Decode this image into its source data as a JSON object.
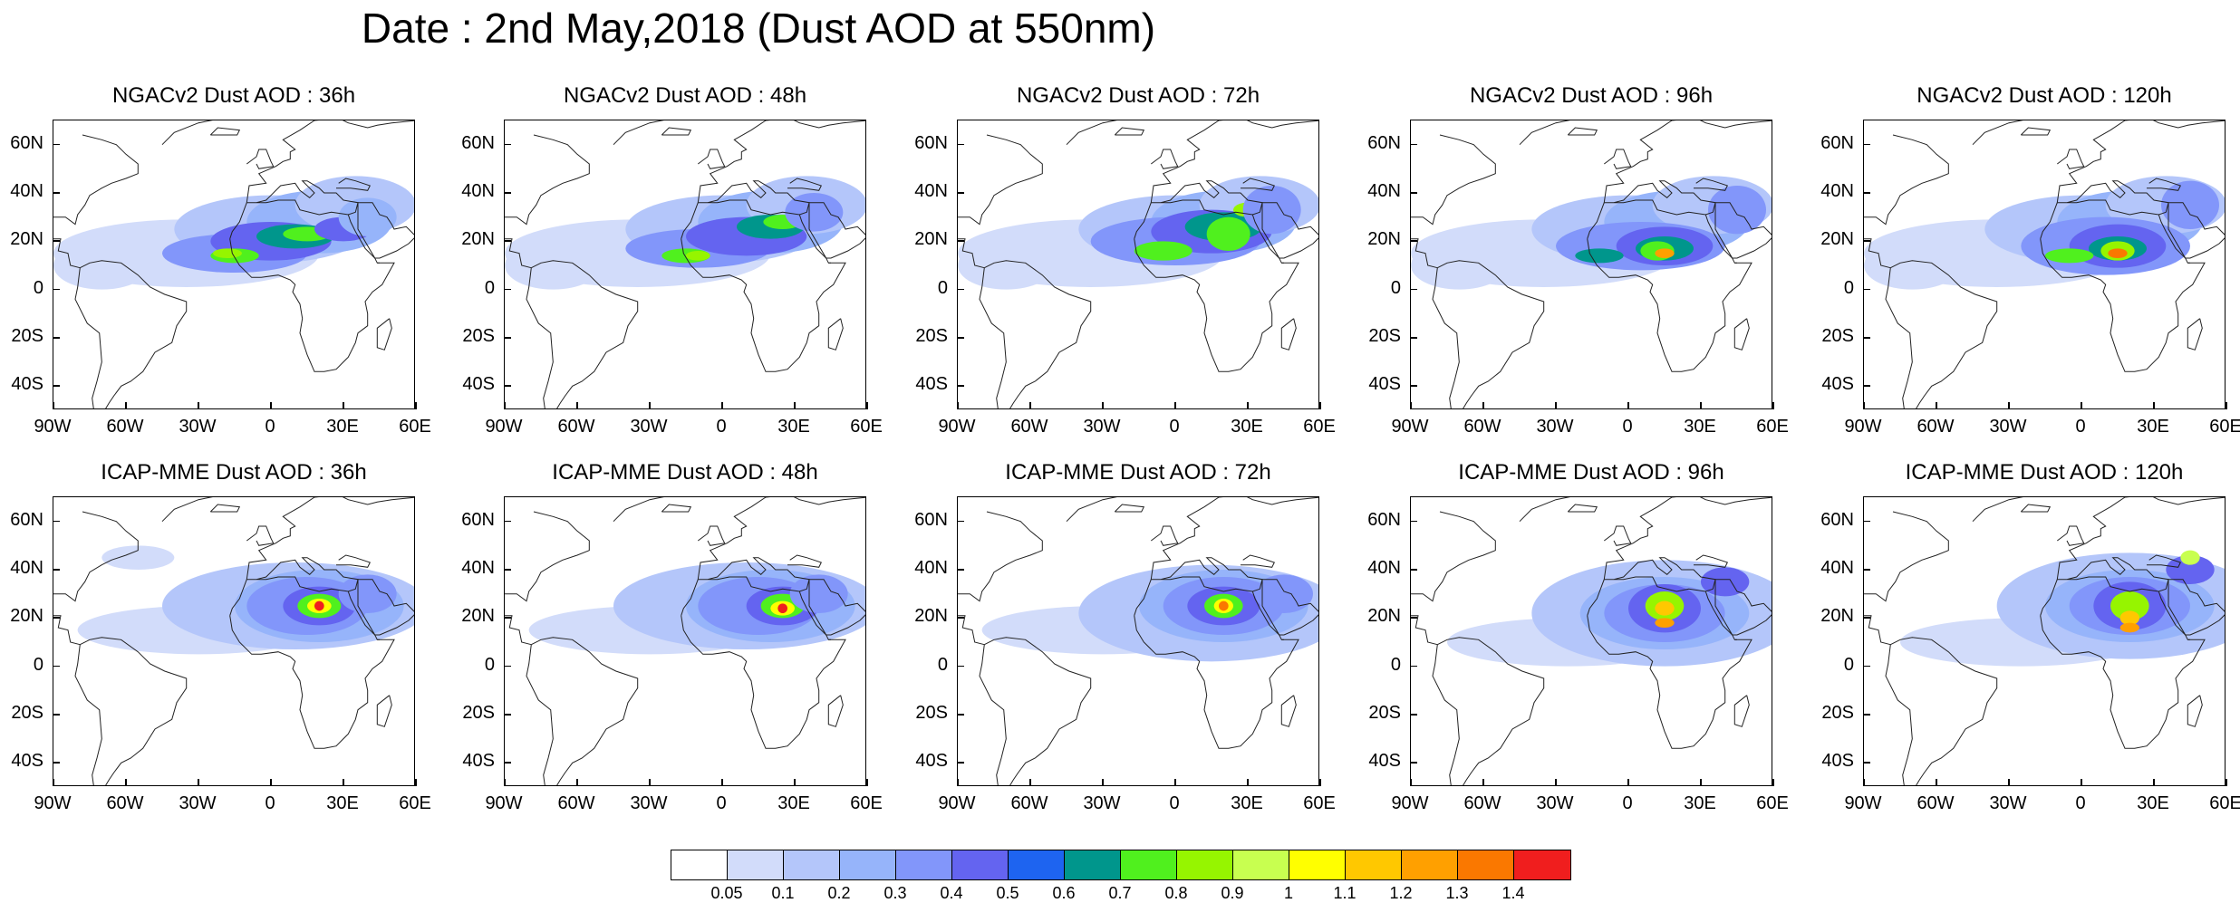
{
  "title": "Date : 2nd May,2018 (Dust AOD at 550nm)",
  "panels": [
    {
      "title": "NGACv2 Dust AOD : 36h"
    },
    {
      "title": "NGACv2 Dust AOD : 48h"
    },
    {
      "title": "NGACv2 Dust AOD : 72h"
    },
    {
      "title": "NGACv2 Dust AOD : 96h"
    },
    {
      "title": "NGACv2 Dust AOD : 120h"
    },
    {
      "title": "ICAP-MME Dust AOD : 36h"
    },
    {
      "title": "ICAP-MME Dust AOD : 48h"
    },
    {
      "title": "ICAP-MME Dust AOD : 72h"
    },
    {
      "title": "ICAP-MME Dust AOD : 96h"
    },
    {
      "title": "ICAP-MME Dust AOD : 120h"
    }
  ],
  "lat_labels": [
    "60N",
    "40N",
    "20N",
    "0",
    "20S",
    "40S"
  ],
  "lon_labels": [
    "90W",
    "60W",
    "30W",
    "0",
    "30E",
    "60E"
  ],
  "colorbar": {
    "labels": [
      "0.05",
      "0.1",
      "0.2",
      "0.3",
      "0.4",
      "0.5",
      "0.6",
      "0.7",
      "0.8",
      "0.9",
      "1",
      "1.1",
      "1.2",
      "1.3",
      "1.4"
    ],
    "colors": [
      "#ffffff",
      "#d2dcfa",
      "#b4c6fa",
      "#96b4fa",
      "#8296fa",
      "#6464f0",
      "#1e64f0",
      "#00968c",
      "#50f01e",
      "#96f500",
      "#c8ff50",
      "#ffff00",
      "#ffc800",
      "#ffa000",
      "#fa7800",
      "#f01e1e"
    ]
  },
  "chart_data": {
    "type": "heatmap",
    "variable": "Dust AOD at 550nm",
    "xrange": [
      -90,
      60
    ],
    "yrange": [
      -50,
      70
    ],
    "levels": [
      0.05,
      0.1,
      0.2,
      0.3,
      0.4,
      0.5,
      0.6,
      0.7,
      0.8,
      0.9,
      1,
      1.1,
      1.2,
      1.3,
      1.4
    ]
  }
}
